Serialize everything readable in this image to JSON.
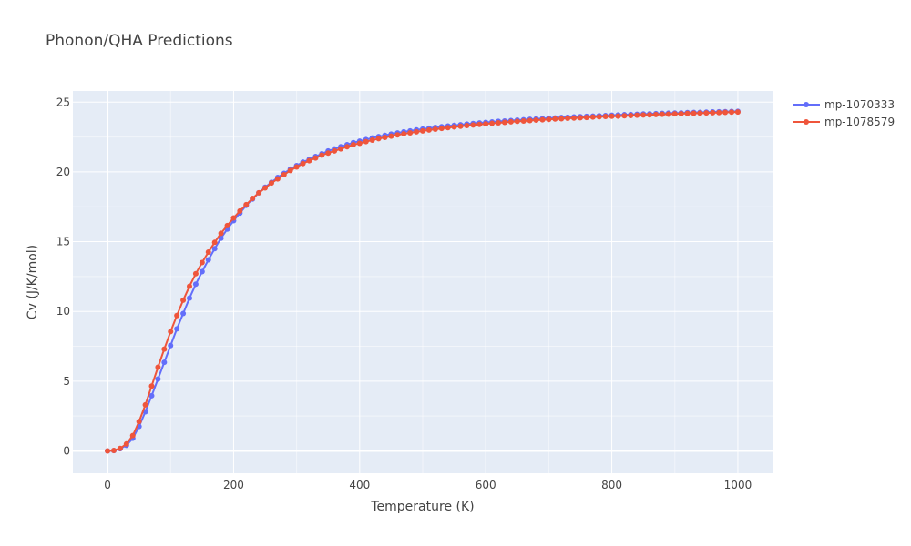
{
  "chart_data": {
    "type": "line",
    "title": "Phonon/QHA Predictions",
    "xlabel": "Temperature (K)",
    "ylabel": "Cv (J/K/mol)",
    "xlim": [
      -55,
      1055
    ],
    "ylim": [
      -1.6,
      25.8
    ],
    "x_ticks": [
      0,
      200,
      400,
      600,
      800,
      1000
    ],
    "y_ticks": [
      0,
      5,
      10,
      15,
      20,
      25
    ],
    "grid": true,
    "legend_position": "top-right",
    "background_color": "#e5ecf6",
    "x": [
      0,
      10,
      20,
      30,
      40,
      50,
      60,
      70,
      80,
      90,
      100,
      110,
      120,
      130,
      140,
      150,
      160,
      170,
      180,
      190,
      200,
      210,
      220,
      230,
      240,
      250,
      260,
      270,
      280,
      290,
      300,
      310,
      320,
      330,
      340,
      350,
      360,
      370,
      380,
      390,
      400,
      410,
      420,
      430,
      440,
      450,
      460,
      470,
      480,
      490,
      500,
      510,
      520,
      530,
      540,
      550,
      560,
      570,
      580,
      590,
      600,
      610,
      620,
      630,
      640,
      650,
      660,
      670,
      680,
      690,
      700,
      710,
      720,
      730,
      740,
      750,
      760,
      770,
      780,
      790,
      800,
      810,
      820,
      830,
      840,
      850,
      860,
      870,
      880,
      890,
      900,
      910,
      920,
      930,
      940,
      950,
      960,
      970,
      980,
      990,
      1000
    ],
    "series": [
      {
        "name": "mp-1070333",
        "color": "#636efa",
        "values": [
          0,
          0.02,
          0.15,
          0.4,
          0.9,
          1.75,
          2.8,
          3.95,
          5.15,
          6.35,
          7.55,
          8.75,
          9.85,
          10.95,
          11.95,
          12.85,
          13.7,
          14.5,
          15.25,
          15.9,
          16.5,
          17.05,
          17.6,
          18.05,
          18.5,
          18.9,
          19.25,
          19.6,
          19.9,
          20.2,
          20.45,
          20.7,
          20.9,
          21.1,
          21.3,
          21.5,
          21.65,
          21.8,
          21.95,
          22.1,
          22.2,
          22.32,
          22.43,
          22.53,
          22.62,
          22.71,
          22.79,
          22.87,
          22.94,
          23.01,
          23.07,
          23.13,
          23.19,
          23.24,
          23.29,
          23.34,
          23.38,
          23.43,
          23.47,
          23.51,
          23.55,
          23.58,
          23.62,
          23.65,
          23.68,
          23.71,
          23.74,
          23.77,
          23.8,
          23.82,
          23.85,
          23.87,
          23.9,
          23.92,
          23.94,
          23.96,
          23.98,
          24.0,
          24.02,
          24.04,
          24.06,
          24.08,
          24.1,
          24.11,
          24.13,
          24.15,
          24.16,
          24.18,
          24.19,
          24.21,
          24.22,
          24.23,
          24.25,
          24.26,
          24.27,
          24.28,
          24.3,
          24.31,
          24.32,
          24.33,
          24.34
        ]
      },
      {
        "name": "mp-1078579",
        "color": "#ef553b",
        "values": [
          0,
          0.03,
          0.18,
          0.5,
          1.1,
          2.1,
          3.3,
          4.65,
          6.0,
          7.3,
          8.55,
          9.7,
          10.8,
          11.8,
          12.7,
          13.5,
          14.25,
          14.95,
          15.6,
          16.15,
          16.7,
          17.2,
          17.65,
          18.1,
          18.5,
          18.85,
          19.2,
          19.5,
          19.8,
          20.1,
          20.35,
          20.6,
          20.8,
          21.0,
          21.2,
          21.35,
          21.5,
          21.65,
          21.8,
          21.95,
          22.05,
          22.17,
          22.28,
          22.38,
          22.47,
          22.56,
          22.65,
          22.73,
          22.8,
          22.87,
          22.94,
          23.0,
          23.06,
          23.12,
          23.17,
          23.22,
          23.27,
          23.32,
          23.36,
          23.4,
          23.44,
          23.48,
          23.52,
          23.55,
          23.59,
          23.62,
          23.65,
          23.68,
          23.71,
          23.74,
          23.76,
          23.79,
          23.81,
          23.84,
          23.86,
          23.88,
          23.9,
          23.93,
          23.95,
          23.97,
          23.99,
          24.0,
          24.02,
          24.04,
          24.06,
          24.08,
          24.09,
          24.11,
          24.13,
          24.14,
          24.16,
          24.17,
          24.19,
          24.2,
          24.21,
          24.23,
          24.24,
          24.25,
          24.27,
          24.28,
          24.29
        ]
      }
    ]
  }
}
